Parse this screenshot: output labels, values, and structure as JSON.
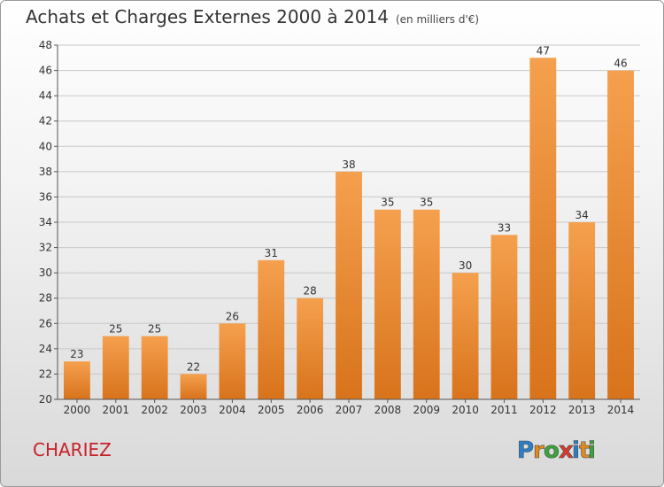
{
  "header": {
    "title": "Achats et Charges Externes 2000 à 2014",
    "unit": "(en milliers d'€)"
  },
  "commune": "CHARIEZ",
  "logo": {
    "text": "Proxiti",
    "letter_colors": [
      "#2a7fc9",
      "#e08a1e",
      "#3aa53a",
      "#d63a2b",
      "#2a7fc9",
      "#e08a1e",
      "#3aa53a"
    ]
  },
  "colors": {
    "bar_top": "#f5a04e",
    "bar_bottom": "#d8731b",
    "axis": "#555555",
    "grid": "#c8c8c8"
  },
  "chart_data": {
    "type": "bar",
    "title": "Achats et Charges Externes 2000 à 2014",
    "subtitle": "(en milliers d'€)",
    "xlabel": "",
    "ylabel": "",
    "categories": [
      "2000",
      "2001",
      "2002",
      "2003",
      "2004",
      "2005",
      "2006",
      "2007",
      "2008",
      "2009",
      "2010",
      "2011",
      "2012",
      "2013",
      "2014"
    ],
    "values": [
      23,
      25,
      25,
      22,
      26,
      31,
      28,
      38,
      35,
      35,
      30,
      33,
      47,
      34,
      46
    ],
    "ylim": [
      20,
      48
    ],
    "yticks": [
      20,
      22,
      24,
      26,
      28,
      30,
      32,
      34,
      36,
      38,
      40,
      42,
      44,
      46,
      48
    ],
    "grid": true,
    "data_labels": true
  }
}
